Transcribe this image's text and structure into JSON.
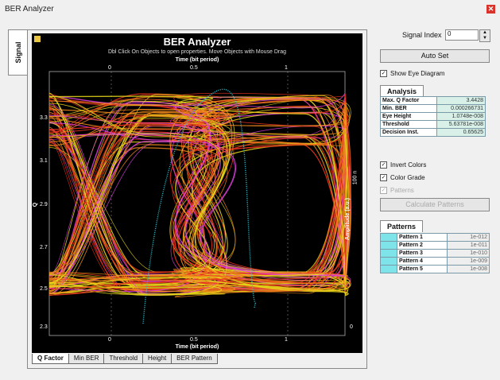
{
  "window": {
    "title": "BER Analyzer"
  },
  "side_tab": {
    "label": "Signal"
  },
  "plot": {
    "title": "BER Analyzer",
    "subtitle": "Dbl Click On Objects to open properties.  Move Objects with Mouse Drag",
    "x_title_top": "Time (bit period)",
    "x_title_bottom": "Time (bit period)",
    "x_ticks": [
      "0",
      "0.5",
      "1"
    ],
    "y_left_label": "Q",
    "y_left_ticks": [
      "3.3",
      "3.1",
      "2.9",
      "2.7",
      "2.5",
      "2.3"
    ],
    "y_right_label": "Amplitude (a.u.)",
    "y_right_ticks": [
      "100 n",
      "0"
    ]
  },
  "bottom_tabs": [
    {
      "label": "Q Factor",
      "active": true
    },
    {
      "label": "Min BER",
      "active": false
    },
    {
      "label": "Threshold",
      "active": false
    },
    {
      "label": "Height",
      "active": false
    },
    {
      "label": "BER Pattern",
      "active": false
    }
  ],
  "controls": {
    "signal_index_label": "Signal Index",
    "signal_index_value": "0",
    "auto_set": "Auto Set",
    "show_eye": "Show Eye Diagram",
    "invert_colors": "Invert Colors",
    "color_grade": "Color Grade",
    "patterns_chk": "Patterns",
    "calculate_patterns": "Calculate Patterns"
  },
  "analysis": {
    "tab": "Analysis",
    "rows": [
      {
        "k": "Max. Q Factor",
        "v": "3.4428"
      },
      {
        "k": "Min. BER",
        "v": "0.000266731"
      },
      {
        "k": "Eye Height",
        "v": "1.0748e-008"
      },
      {
        "k": "Threshold",
        "v": "5.63781e-008"
      },
      {
        "k": "Decision Inst.",
        "v": "0.65625"
      }
    ]
  },
  "patterns": {
    "tab": "Patterns",
    "rows": [
      {
        "k": "Pattern 1",
        "v": "1e-012"
      },
      {
        "k": "Pattern 2",
        "v": "1e-011"
      },
      {
        "k": "Pattern 3",
        "v": "1e-010"
      },
      {
        "k": "Pattern 4",
        "v": "1e-009"
      },
      {
        "k": "Pattern 5",
        "v": "1e-008"
      }
    ]
  },
  "colors": {
    "yellow": "#e8d81a",
    "orange": "#f08a1a",
    "red": "#e8321e",
    "magenta": "#e040e0",
    "cyan": "#2ec8d8"
  }
}
